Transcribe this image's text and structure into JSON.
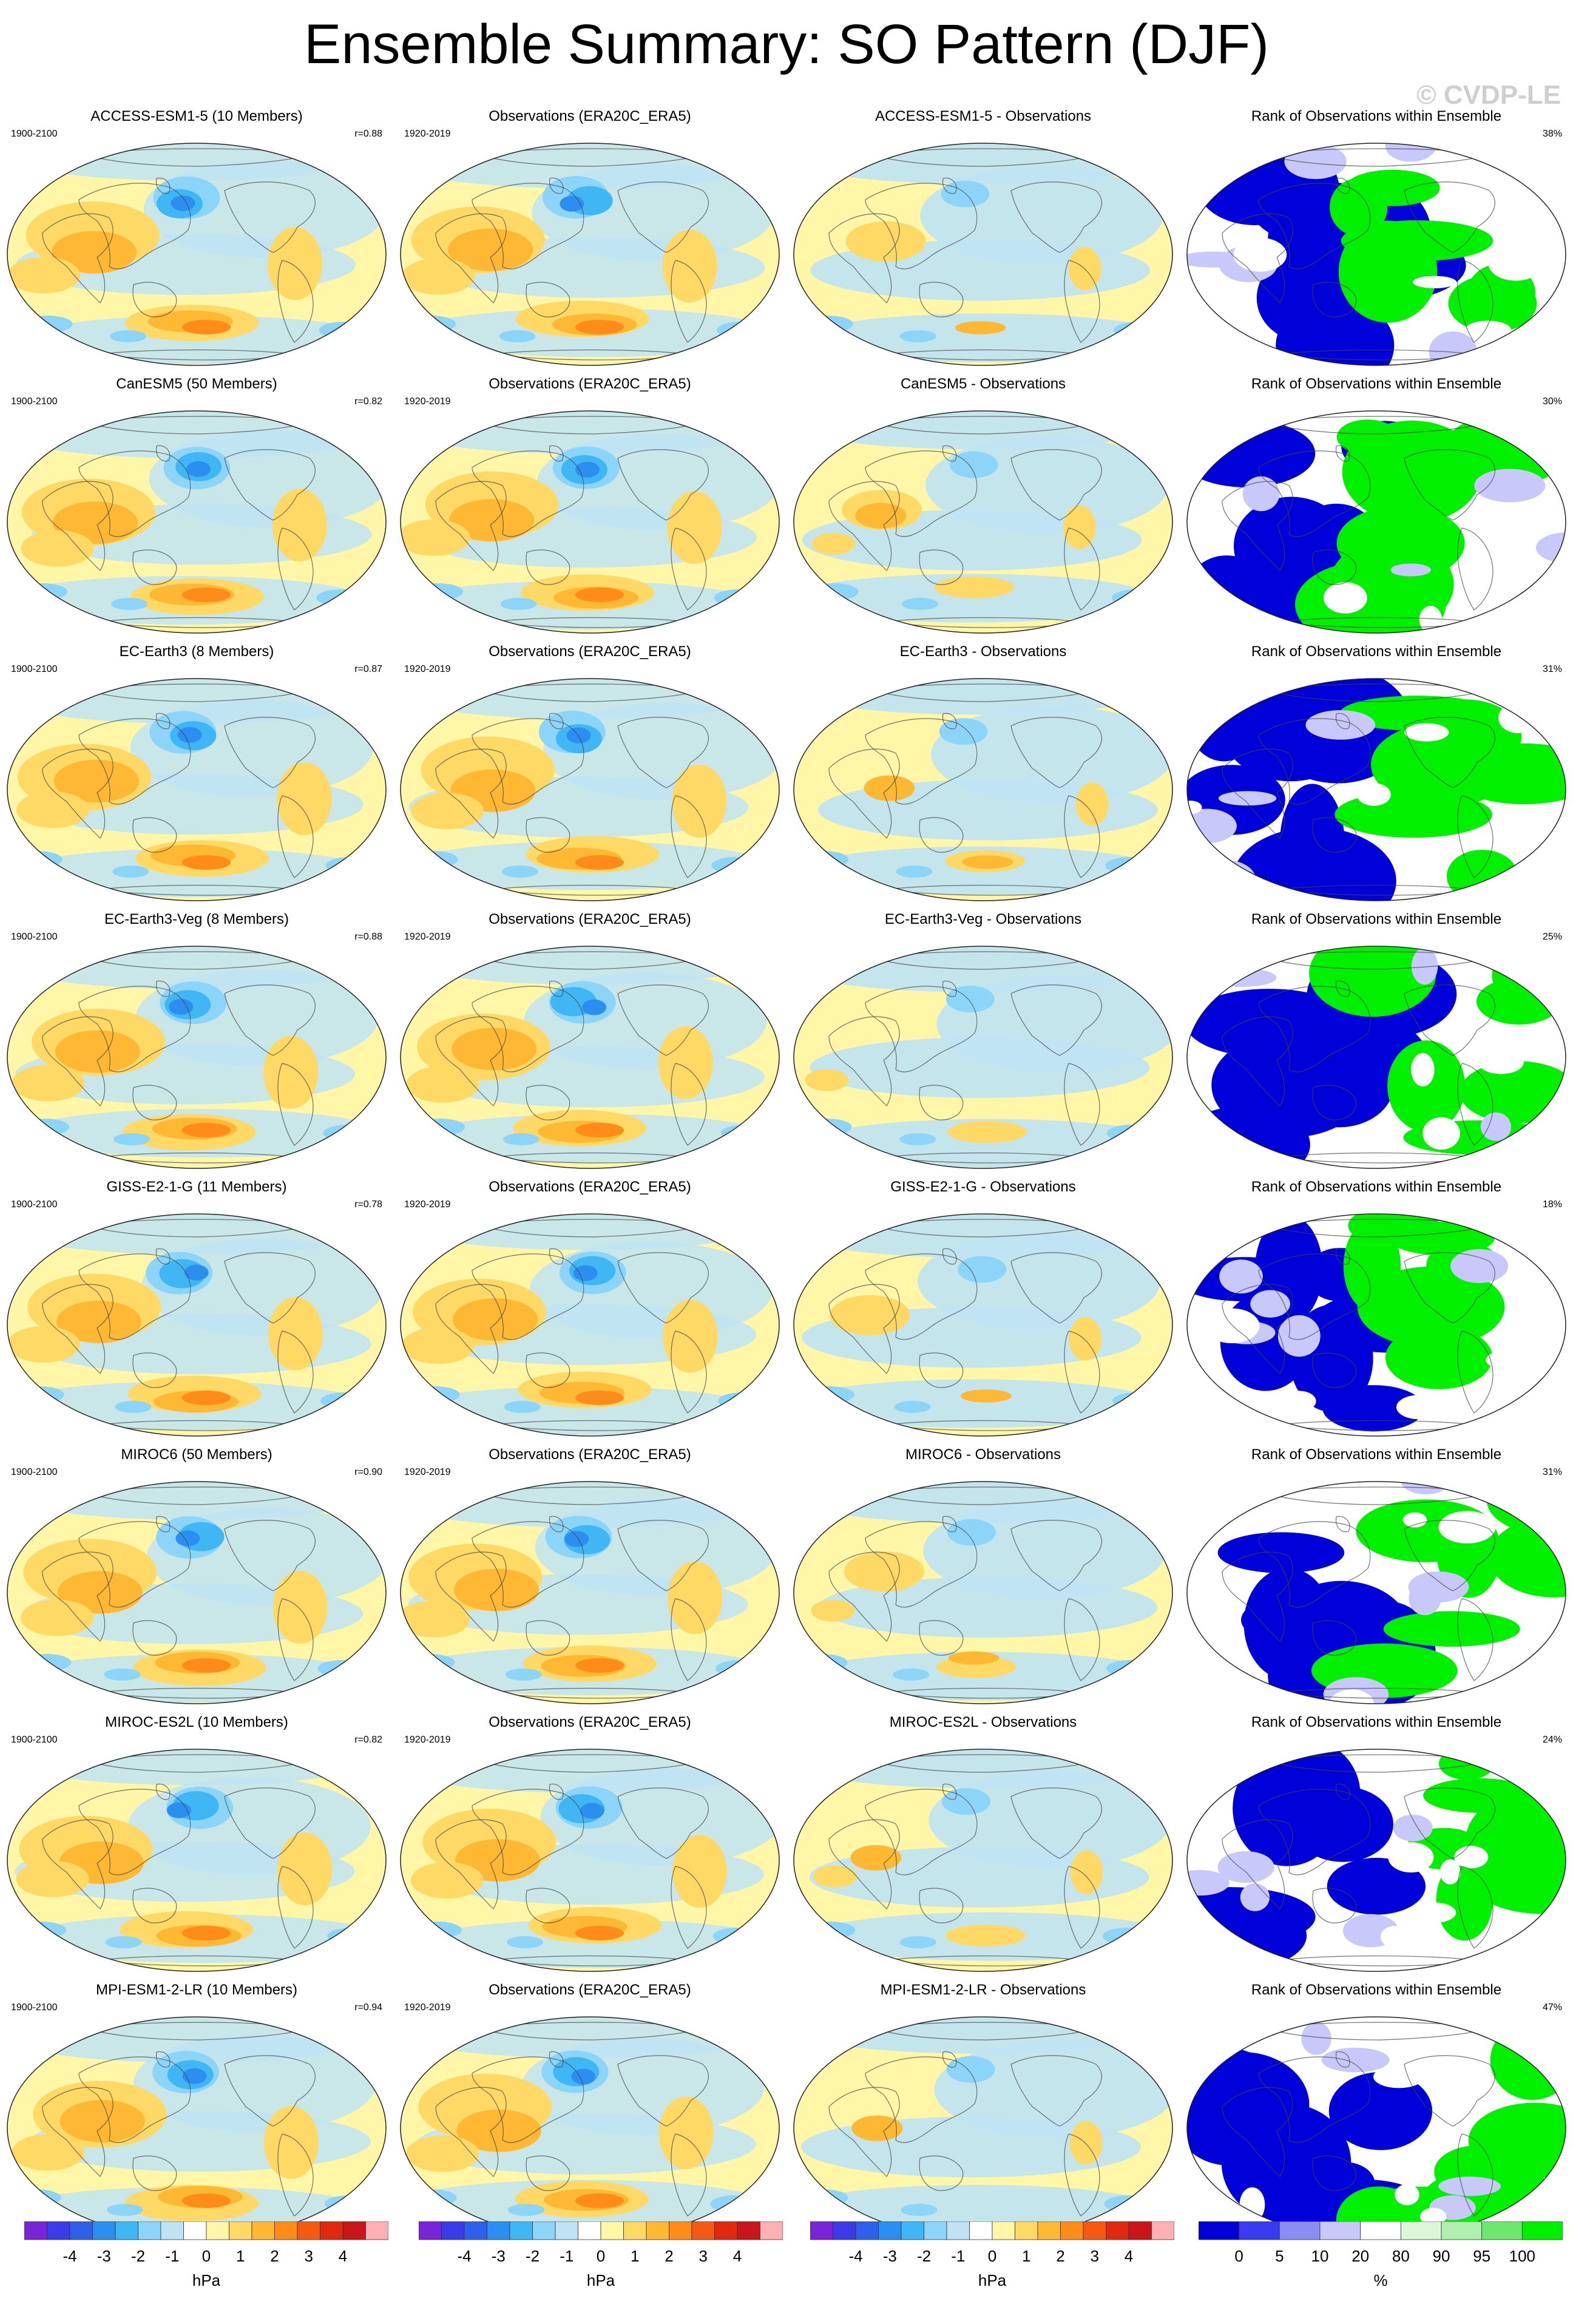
{
  "title": "Ensemble Summary: SO Pattern (DJF)",
  "watermark": "© CVDP-LE",
  "colors": {
    "diverging_palette": [
      "#7a24d8",
      "#3b3be8",
      "#2f60ea",
      "#2c8eee",
      "#40b6f4",
      "#8dd5f8",
      "#bfe3f4",
      "#ffffff",
      "#fff6a8",
      "#ffd966",
      "#ffb833",
      "#ff8c1a",
      "#f55a14",
      "#e02a10",
      "#c8161a",
      "#ffb0b0"
    ],
    "rank_palette": [
      "#0000d8",
      "#3a3af0",
      "#8c8cf5",
      "#c8c8fa",
      "#ffffff",
      "#d9f8d9",
      "#aef0ae",
      "#6de86d",
      "#00f000"
    ]
  },
  "rows": [
    {
      "model": {
        "title": "ACCESS-ESM1-5 (10 Members)",
        "years": "1900-2100",
        "r": "r=0.88"
      },
      "obs": {
        "title": "Observations (ERA20C_ERA5)",
        "years": "1920-2019"
      },
      "diff": {
        "title": "ACCESS-ESM1-5 - Observations"
      },
      "rank": {
        "title": "Rank of Observations within Ensemble",
        "pct": "38%"
      }
    },
    {
      "model": {
        "title": "CanESM5 (50 Members)",
        "years": "1900-2100",
        "r": "r=0.82"
      },
      "obs": {
        "title": "Observations (ERA20C_ERA5)",
        "years": "1920-2019"
      },
      "diff": {
        "title": "CanESM5 - Observations"
      },
      "rank": {
        "title": "Rank of Observations within Ensemble",
        "pct": "30%"
      }
    },
    {
      "model": {
        "title": "EC-Earth3 (8 Members)",
        "years": "1900-2100",
        "r": "r=0.87"
      },
      "obs": {
        "title": "Observations (ERA20C_ERA5)",
        "years": "1920-2019"
      },
      "diff": {
        "title": "EC-Earth3 - Observations"
      },
      "rank": {
        "title": "Rank of Observations within Ensemble",
        "pct": "31%"
      }
    },
    {
      "model": {
        "title": "EC-Earth3-Veg (8 Members)",
        "years": "1900-2100",
        "r": "r=0.88"
      },
      "obs": {
        "title": "Observations (ERA20C_ERA5)",
        "years": "1920-2019"
      },
      "diff": {
        "title": "EC-Earth3-Veg - Observations"
      },
      "rank": {
        "title": "Rank of Observations within Ensemble",
        "pct": "25%"
      }
    },
    {
      "model": {
        "title": "GISS-E2-1-G (11 Members)",
        "years": "1900-2100",
        "r": "r=0.78"
      },
      "obs": {
        "title": "Observations (ERA20C_ERA5)",
        "years": "1920-2019"
      },
      "diff": {
        "title": "GISS-E2-1-G - Observations"
      },
      "rank": {
        "title": "Rank of Observations within Ensemble",
        "pct": "18%"
      }
    },
    {
      "model": {
        "title": "MIROC6 (50 Members)",
        "years": "1900-2100",
        "r": "r=0.90"
      },
      "obs": {
        "title": "Observations (ERA20C_ERA5)",
        "years": "1920-2019"
      },
      "diff": {
        "title": "MIROC6 - Observations"
      },
      "rank": {
        "title": "Rank of Observations within Ensemble",
        "pct": "31%"
      }
    },
    {
      "model": {
        "title": "MIROC-ES2L (10 Members)",
        "years": "1900-2100",
        "r": "r=0.82"
      },
      "obs": {
        "title": "Observations (ERA20C_ERA5)",
        "years": "1920-2019"
      },
      "diff": {
        "title": "MIROC-ES2L - Observations"
      },
      "rank": {
        "title": "Rank of Observations within Ensemble",
        "pct": "24%"
      }
    },
    {
      "model": {
        "title": "MPI-ESM1-2-LR (10 Members)",
        "years": "1900-2100",
        "r": "r=0.94"
      },
      "obs": {
        "title": "Observations (ERA20C_ERA5)",
        "years": "1920-2019"
      },
      "diff": {
        "title": "MPI-ESM1-2-LR - Observations"
      },
      "rank": {
        "title": "Rank of Observations within Ensemble",
        "pct": "47%"
      }
    }
  ],
  "colorbars": [
    {
      "ticks": [
        "-4",
        "-3",
        "-2",
        "-1",
        "0",
        "1",
        "2",
        "3",
        "4"
      ],
      "unit": "hPa"
    },
    {
      "ticks": [
        "-4",
        "-3",
        "-2",
        "-1",
        "0",
        "1",
        "2",
        "3",
        "4"
      ],
      "unit": "hPa"
    },
    {
      "ticks": [
        "-4",
        "-3",
        "-2",
        "-1",
        "0",
        "1",
        "2",
        "3",
        "4"
      ],
      "unit": "hPa"
    },
    {
      "ticks": [
        "0",
        "5",
        "10",
        "20",
        "80",
        "90",
        "95",
        "100"
      ],
      "unit": "%"
    }
  ]
}
